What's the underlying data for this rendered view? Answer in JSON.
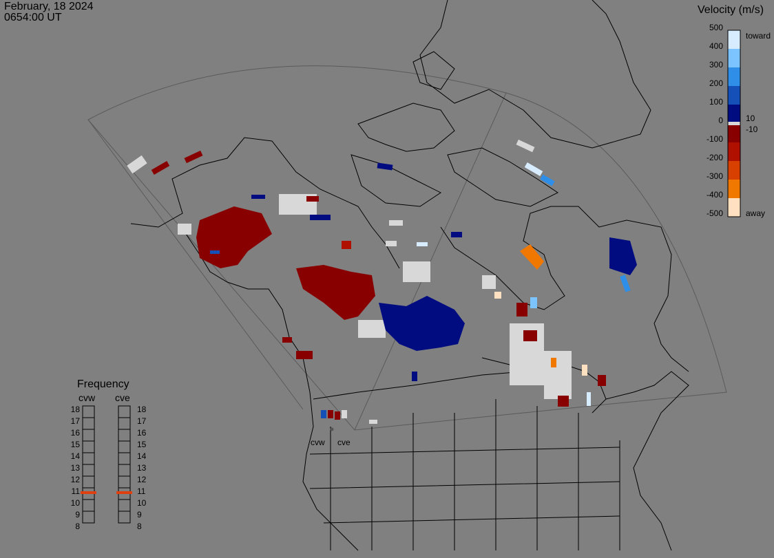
{
  "header": {
    "date": "February, 18 2024",
    "time": "0654:00 UT"
  },
  "velocity_scale": {
    "title": "Velocity (m/s)",
    "ticks": [
      "500",
      "400",
      "300",
      "200",
      "100",
      "0",
      "-100",
      "-200",
      "-300",
      "-400",
      "-500"
    ],
    "label_toward": "toward",
    "label_away": "away",
    "label_pos": "10",
    "label_neg": "-10",
    "colors": [
      "#d8ecff",
      "#7cc4ff",
      "#2f8fe8",
      "#1450b8",
      "#0a2f98",
      "#000c80",
      "#d8d8d8",
      "#880000",
      "#b01000",
      "#d84000",
      "#f07800",
      "#ffb060",
      "#ffe0c0"
    ]
  },
  "frequency_panel": {
    "title": "Frequency",
    "columns": [
      {
        "name": "cvw",
        "value": 11
      },
      {
        "name": "cve",
        "value": 11
      }
    ],
    "levels": [
      "18",
      "17",
      "16",
      "15",
      "14",
      "13",
      "12",
      "11",
      "10",
      "9",
      "8"
    ],
    "indicator_color": "#e04010"
  },
  "radar_sites": [
    {
      "name": "cvw"
    },
    {
      "name": "cve"
    }
  ],
  "colors": {
    "background": "#808080",
    "coastline": "#000000",
    "fov_outline": "#606060",
    "ground_scatter": "#d8d8d8"
  }
}
